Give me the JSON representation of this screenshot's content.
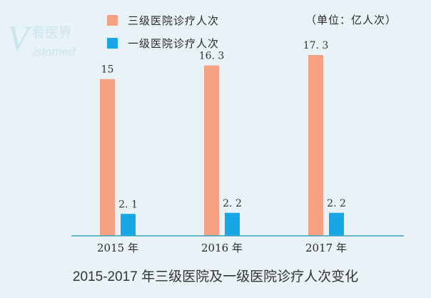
{
  "logo": {
    "letter": "V",
    "cn_text": "看医界",
    "en_text": "istomed"
  },
  "unit": "（单位：亿人次）",
  "caption": "2015-2017 年三级医院及一级医院诊疗人次变化",
  "colors": {
    "tertiary": "#f4a283",
    "primary": "#17a6e6",
    "axis": "#3aa6bf",
    "background": "#e9f2f6"
  },
  "chart_data": {
    "type": "bar",
    "categories": [
      "2015 年",
      "2016 年",
      "2017 年"
    ],
    "series": [
      {
        "name": "三级医院诊疗人次",
        "values": [
          15,
          16.3,
          17.3
        ],
        "labels": [
          "15",
          "16. 3",
          "17. 3"
        ]
      },
      {
        "name": "一级医院诊疗人次",
        "values": [
          2.1,
          2.2,
          2.2
        ],
        "labels": [
          "2. 1",
          "2. 2",
          "2. 2"
        ]
      }
    ],
    "ylim": [
      0,
      17.3
    ],
    "legend": "top-center",
    "grid": false
  }
}
